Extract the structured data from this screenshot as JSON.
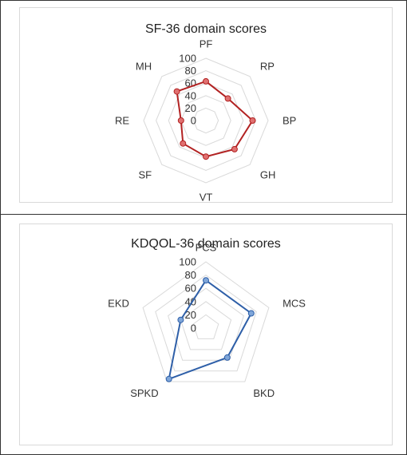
{
  "chart_data": [
    {
      "type": "radar",
      "title": "SF-36 domain scores",
      "categories": [
        "PF",
        "RP",
        "BP",
        "GH",
        "VT",
        "SF",
        "RE",
        "MH"
      ],
      "series": [
        {
          "values": [
            63,
            50,
            75,
            65,
            58,
            52,
            40,
            66
          ]
        }
      ],
      "ylim": [
        0,
        100
      ],
      "ticks": [
        "100",
        "80",
        "60",
        "40",
        "20",
        "0"
      ],
      "grid": true,
      "line_color": "#b22222",
      "marker_color": "#e07070"
    },
    {
      "type": "radar",
      "title": "KDQOL-36 domain scores",
      "categories": [
        "PCS",
        "MCS",
        "BKD",
        "SPKD",
        "EKD"
      ],
      "series": [
        {
          "values": [
            72,
            72,
            55,
            95,
            40
          ]
        }
      ],
      "ylim": [
        0,
        100
      ],
      "ticks": [
        "100",
        "80",
        "60",
        "40",
        "20",
        "0"
      ],
      "grid": true,
      "line_color": "#2e5fa8",
      "marker_color": "#7fa6d9"
    }
  ]
}
